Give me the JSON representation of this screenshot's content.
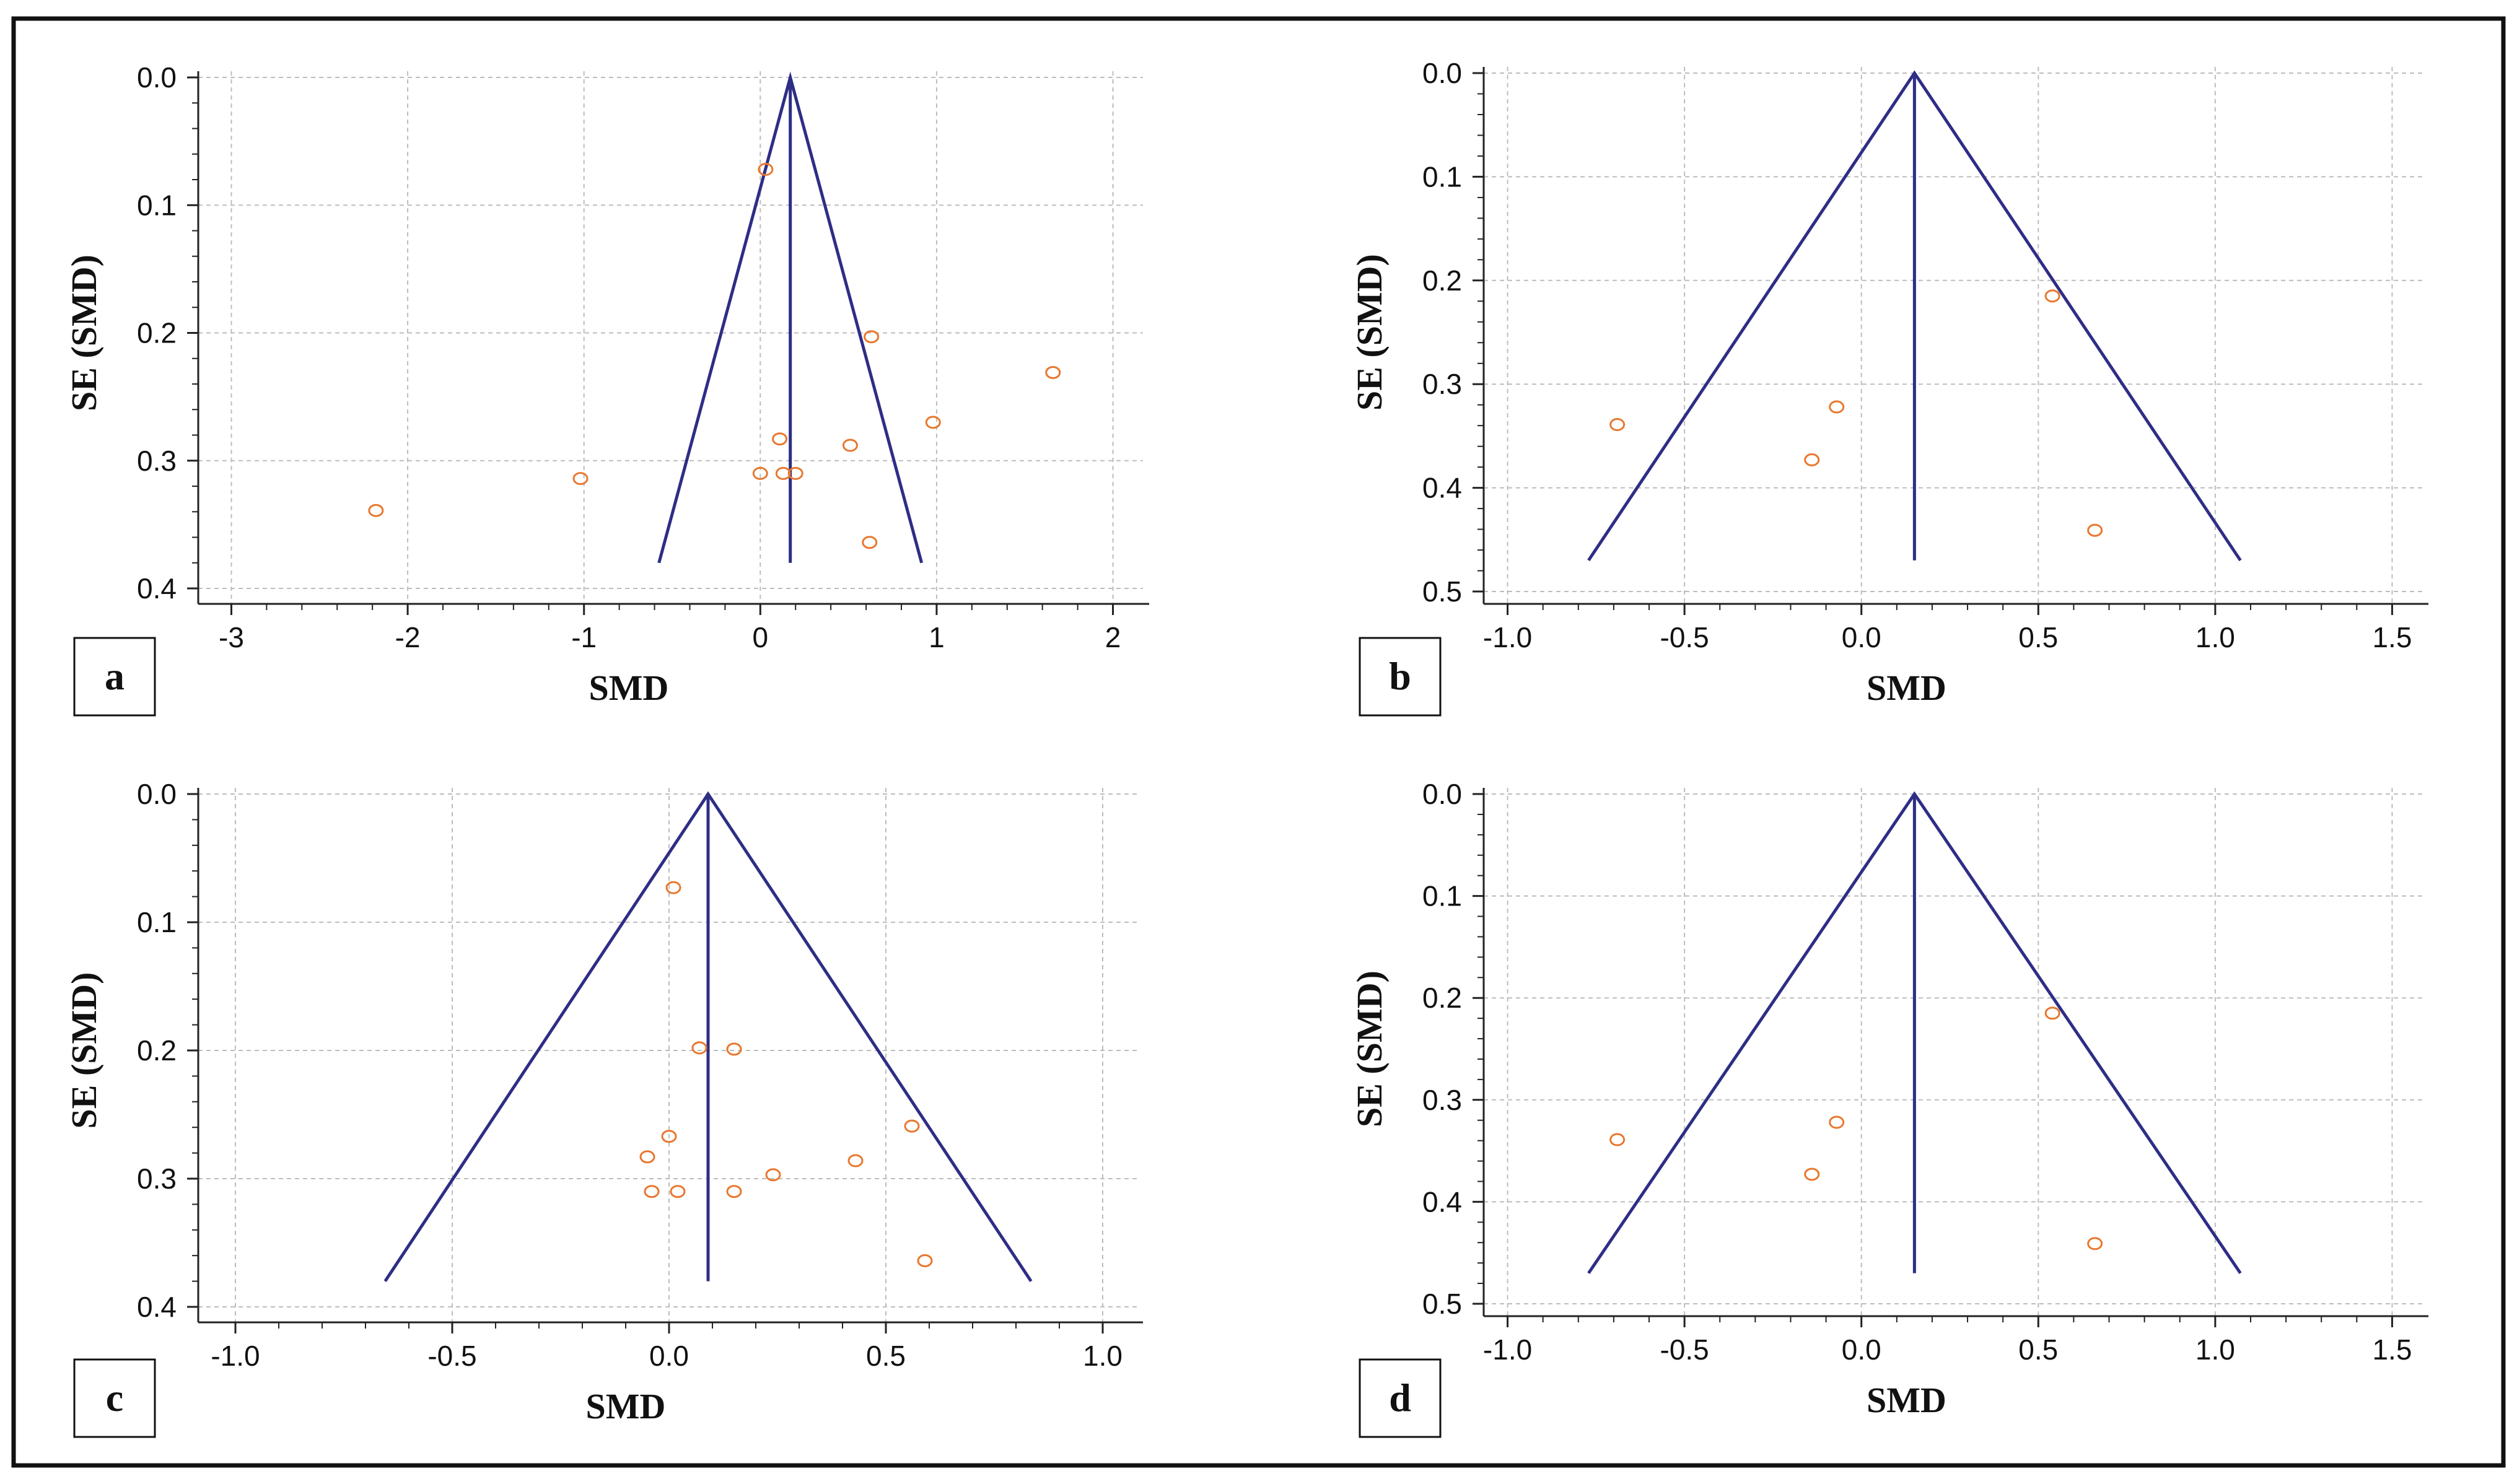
{
  "colors": {
    "frame": "#111111",
    "axis": "#222222",
    "grid": "#bdbdbd",
    "funnel": "#2e2e86",
    "point": "#e8772e"
  },
  "chart_data": [
    {
      "type": "scatter",
      "subtype": "funnel-plot",
      "panel_label": "a",
      "xlabel": "SMD",
      "ylabel": "SE (SMD)",
      "xlim": [
        -3.1,
        2.1
      ],
      "ylim": [
        0,
        0.41
      ],
      "y_inverted": true,
      "grid": true,
      "xticks": [
        -3,
        -2,
        -1,
        0,
        1,
        2
      ],
      "xtick_labels": [
        "-3",
        "-2",
        "-1",
        "0",
        "1",
        "2"
      ],
      "yticks": [
        0.0,
        0.1,
        0.2,
        0.3,
        0.4
      ],
      "ytick_labels": [
        "0.0",
        "0.1",
        "0.2",
        "0.3",
        "0.4"
      ],
      "pooled_effect": 0.17,
      "funnel_max_se": 0.38,
      "points": [
        {
          "x": 0.03,
          "y": 0.072
        },
        {
          "x": 0.63,
          "y": 0.203
        },
        {
          "x": 1.66,
          "y": 0.231
        },
        {
          "x": 0.98,
          "y": 0.27
        },
        {
          "x": 0.11,
          "y": 0.283
        },
        {
          "x": 0.51,
          "y": 0.288
        },
        {
          "x": 0.0,
          "y": 0.31
        },
        {
          "x": 0.13,
          "y": 0.31
        },
        {
          "x": 0.2,
          "y": 0.31
        },
        {
          "x": -1.02,
          "y": 0.314
        },
        {
          "x": -2.18,
          "y": 0.339
        },
        {
          "x": 0.62,
          "y": 0.364
        }
      ]
    },
    {
      "type": "scatter",
      "subtype": "funnel-plot",
      "panel_label": "b",
      "xlabel": "SMD",
      "ylabel": "SE (SMD)",
      "xlim": [
        -1.05,
        1.55
      ],
      "ylim": [
        0,
        0.51
      ],
      "y_inverted": true,
      "grid": true,
      "xticks": [
        -1.0,
        -0.5,
        0.0,
        0.5,
        1.0,
        1.5
      ],
      "xtick_labels": [
        "-1.0",
        "-0.5",
        "0.0",
        "0.5",
        "1.0",
        "1.5"
      ],
      "yticks": [
        0.0,
        0.1,
        0.2,
        0.3,
        0.4,
        0.5
      ],
      "ytick_labels": [
        "0.0",
        "0.1",
        "0.2",
        "0.3",
        "0.4",
        "0.5"
      ],
      "pooled_effect": 0.15,
      "funnel_max_se": 0.47,
      "points": [
        {
          "x": 0.54,
          "y": 0.215
        },
        {
          "x": -0.07,
          "y": 0.322
        },
        {
          "x": -0.69,
          "y": 0.339
        },
        {
          "x": -0.14,
          "y": 0.373
        },
        {
          "x": 0.66,
          "y": 0.441
        }
      ]
    },
    {
      "type": "scatter",
      "subtype": "funnel-plot",
      "panel_label": "c",
      "xlabel": "SMD",
      "ylabel": "SE (SMD)",
      "xlim": [
        -1.05,
        1.05
      ],
      "ylim": [
        0,
        0.41
      ],
      "y_inverted": true,
      "grid": true,
      "xticks": [
        -1.0,
        -0.5,
        0.0,
        0.5,
        1.0
      ],
      "xtick_labels": [
        "-1.0",
        "-0.5",
        "0.0",
        "0.5",
        "1.0"
      ],
      "yticks": [
        0.0,
        0.1,
        0.2,
        0.3,
        0.4
      ],
      "ytick_labels": [
        "0.0",
        "0.1",
        "0.2",
        "0.3",
        "0.4"
      ],
      "pooled_effect": 0.09,
      "funnel_max_se": 0.38,
      "points": [
        {
          "x": 0.01,
          "y": 0.073
        },
        {
          "x": 0.07,
          "y": 0.198
        },
        {
          "x": 0.15,
          "y": 0.199
        },
        {
          "x": 0.56,
          "y": 0.259
        },
        {
          "x": -0.0,
          "y": 0.267
        },
        {
          "x": -0.05,
          "y": 0.283
        },
        {
          "x": 0.43,
          "y": 0.286
        },
        {
          "x": 0.24,
          "y": 0.297
        },
        {
          "x": -0.04,
          "y": 0.31
        },
        {
          "x": 0.02,
          "y": 0.31
        },
        {
          "x": 0.15,
          "y": 0.31
        },
        {
          "x": 0.59,
          "y": 0.364
        }
      ]
    },
    {
      "type": "scatter",
      "subtype": "funnel-plot",
      "panel_label": "d",
      "xlabel": "SMD",
      "ylabel": "SE (SMD)",
      "xlim": [
        -1.05,
        1.55
      ],
      "ylim": [
        0,
        0.51
      ],
      "y_inverted": true,
      "grid": true,
      "xticks": [
        -1.0,
        -0.5,
        0.0,
        0.5,
        1.0,
        1.5
      ],
      "xtick_labels": [
        "-1.0",
        "-0.5",
        "0.0",
        "0.5",
        "1.0",
        "1.5"
      ],
      "yticks": [
        0.0,
        0.1,
        0.2,
        0.3,
        0.4,
        0.5
      ],
      "ytick_labels": [
        "0.0",
        "0.1",
        "0.2",
        "0.3",
        "0.4",
        "0.5"
      ],
      "pooled_effect": 0.15,
      "funnel_max_se": 0.47,
      "points": [
        {
          "x": 0.54,
          "y": 0.215
        },
        {
          "x": -0.07,
          "y": 0.322
        },
        {
          "x": -0.69,
          "y": 0.339
        },
        {
          "x": -0.14,
          "y": 0.373
        },
        {
          "x": 0.66,
          "y": 0.441
        }
      ]
    }
  ]
}
